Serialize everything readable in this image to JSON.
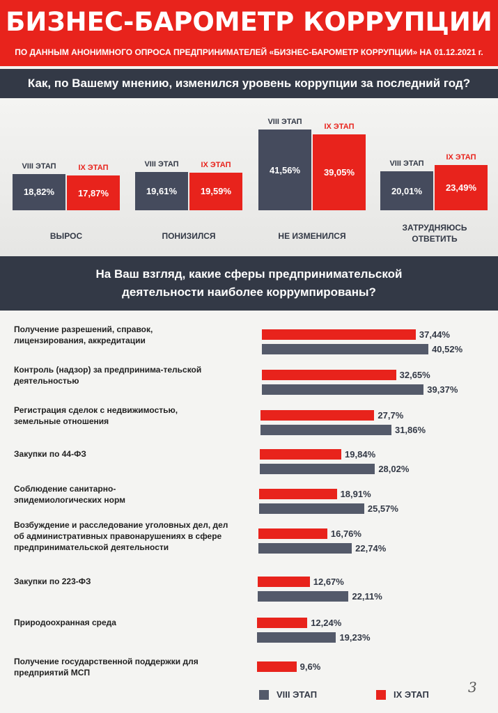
{
  "header": {
    "title": "БИЗНЕС-БАРОМЕТР КОРРУПЦИИ",
    "subtitle": "ПО ДАННЫМ АНОНИМНОГО ОПРОСА ПРЕДПРИНИМАТЕЛЕЙ «БИЗНЕС-БАРОМЕТР КОРРУПЦИИ» НА 01.12.2021 г."
  },
  "colors": {
    "red": "#e8231c",
    "dark": "#454b5d",
    "navy": "#333946"
  },
  "chart_data": [
    {
      "type": "bar",
      "title": "Как, по Вашему мнению, изменился уровень коррупции за последний год?",
      "categories": [
        "ВЫРОС",
        "ПОНИЗИЛСЯ",
        "НЕ ИЗМЕНИЛСЯ",
        "ЗАТРУДНЯЮСЬ ОТВЕТИТЬ"
      ],
      "series": [
        {
          "name": "VIII ЭТАП",
          "values": [
            18.82,
            19.61,
            41.56,
            20.01
          ],
          "labels": [
            "18,82%",
            "19,61%",
            "41,56%",
            "20,01%"
          ]
        },
        {
          "name": "IX ЭТАП",
          "values": [
            17.87,
            19.59,
            39.05,
            23.49
          ],
          "labels": [
            "17,87%",
            "19,59%",
            "39,05%",
            "23,49%"
          ]
        }
      ]
    },
    {
      "type": "bar",
      "orientation": "horizontal",
      "title": "На Ваш взгляд, какие сферы предпринимательской деятельности наиболее коррумпированы?",
      "categories": [
        "Получение разрешений, справок, лицензирования, аккредитации",
        "Контроль (надзор) за предпринима-тельской деятельностью",
        "Регистрация сделок с недвижимостью, земельные отношения",
        "Закупки по 44-ФЗ",
        "Соблюдение санитарно-эпидемиологических норм",
        "Возбуждение и расследование уголовных дел, дел об административных правонарушениях в сфере предпринимательской деятельности",
        "Закупки по 223-ФЗ",
        "Природоохранная среда",
        "Получение государственной поддержки для предприятий МСП"
      ],
      "category_lines": [
        [
          "Получение разрешений, справок,",
          "лицензирования, аккредитации"
        ],
        [
          "Контроль (надзор) за предпринима-",
          "тельской деятельностью"
        ],
        [
          "Регистрация сделок с недвижимостью,",
          "земельные отношения"
        ],
        [
          "Закупки по 44-ФЗ"
        ],
        [
          "Соблюдение санитарно-",
          "эпидемиологических норм"
        ],
        [
          "Возбуждение и расследование уголовных дел,",
          "дел об административных правонарушениях",
          "в сфере предпринимательской деятельности"
        ],
        [
          "Закупки по 223-ФЗ"
        ],
        [
          "Природоохранная среда"
        ],
        [
          "Получение государственной поддержки",
          "для предприятий МСП"
        ]
      ],
      "series": [
        {
          "name": "IX ЭТАП",
          "values": [
            37.44,
            32.65,
            27.7,
            19.84,
            18.91,
            16.76,
            12.67,
            12.24,
            9.6
          ],
          "labels": [
            "37,44%",
            "32,65%",
            "27,7%",
            "19,84%",
            "18,91%",
            "16,76%",
            "12,67%",
            "12,24%",
            "9,6%"
          ]
        },
        {
          "name": "VIII ЭТАП",
          "values": [
            40.52,
            39.37,
            31.86,
            28.02,
            25.57,
            22.74,
            22.11,
            19.23,
            null
          ],
          "labels": [
            "40,52%",
            "39,37%",
            "31,86%",
            "28,02%",
            "25,57%",
            "22,74%",
            "22,11%",
            "19,23%",
            ""
          ]
        }
      ],
      "legend": [
        "VIII ЭТАП",
        "IX ЭТАП"
      ],
      "legend_position": "bottom"
    }
  ],
  "page_number": "3"
}
